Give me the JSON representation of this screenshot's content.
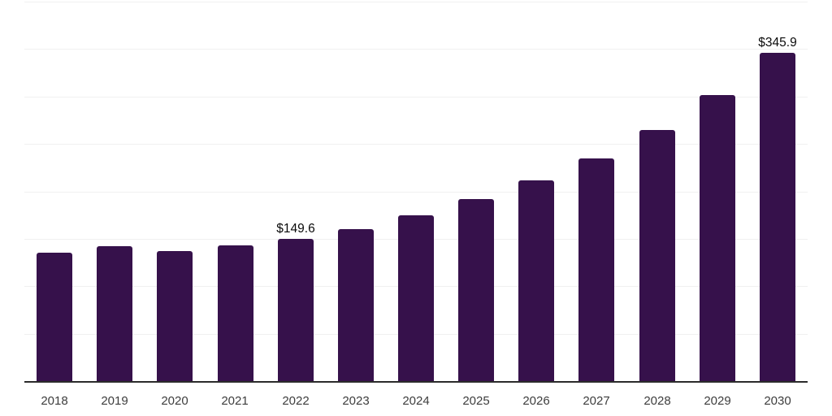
{
  "chart_data": {
    "type": "bar",
    "title": "",
    "xlabel": "",
    "ylabel": "",
    "categories": [
      "2018",
      "2019",
      "2020",
      "2021",
      "2022",
      "2023",
      "2024",
      "2025",
      "2026",
      "2027",
      "2028",
      "2029",
      "2030"
    ],
    "values": [
      135.2,
      141.9,
      136.9,
      142.8,
      149.6,
      160.5,
      175.0,
      191.9,
      211.4,
      235.1,
      264.7,
      301.9,
      345.9
    ],
    "annotations": [
      {
        "category": "2022",
        "text": "$149.6"
      },
      {
        "category": "2030",
        "text": "$345.9"
      }
    ],
    "ylim": [
      0,
      400
    ],
    "grid_step": 50,
    "grid": true,
    "legend": false,
    "bar_color": "#36114b"
  },
  "colors": {
    "bar": "#36114b",
    "gridline": "#f0f0f0",
    "axis_line": "#2b2b2b",
    "tick_label": "#3d3d3d",
    "value_label": "#0a0a0a",
    "background": "#ffffff"
  }
}
